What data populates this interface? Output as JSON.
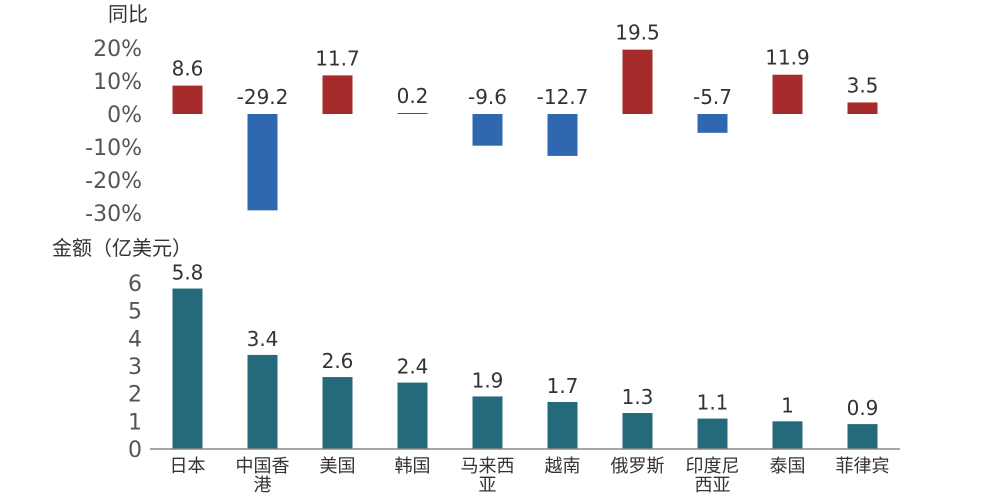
{
  "chart_data": [
    {
      "type": "bar",
      "ylabel": "同比",
      "ytick_labels": [
        "20%",
        "10%",
        "0%",
        "-10%",
        "-20%",
        "-30%"
      ],
      "ylim": [
        -30,
        20
      ],
      "value_labels": [
        "8.6",
        "-29.2",
        "11.7",
        "0.2",
        "-9.6",
        "-12.7",
        "19.5",
        "-5.7",
        "11.9",
        "3.5"
      ],
      "values": [
        8.6,
        -29.2,
        11.7,
        0.2,
        -9.6,
        -12.7,
        19.5,
        -5.7,
        11.9,
        3.5
      ],
      "colors": {
        "positive": "#a62b2b",
        "negative": "#2f67b1"
      },
      "grid": false
    },
    {
      "type": "bar",
      "ylabel": "金额（亿美元）",
      "categories": [
        [
          "日本"
        ],
        [
          "中国香",
          "港"
        ],
        [
          "美国"
        ],
        [
          "韩国"
        ],
        [
          "马来西",
          "亚"
        ],
        [
          "越南"
        ],
        [
          "俄罗斯"
        ],
        [
          "印度尼",
          "西亚"
        ],
        [
          "泰国"
        ],
        [
          "菲律宾"
        ]
      ],
      "ytick_labels": [
        "6",
        "5",
        "4",
        "3",
        "2",
        "1",
        "0"
      ],
      "ylim": [
        0,
        6
      ],
      "value_labels": [
        "5.8",
        "3.4",
        "2.6",
        "2.4",
        "1.9",
        "1.7",
        "1.3",
        "1.1",
        "1",
        "0.9"
      ],
      "values": [
        5.8,
        3.4,
        2.6,
        2.4,
        1.9,
        1.7,
        1.3,
        1.1,
        1,
        0.9
      ],
      "colors": {
        "bar": "#256a7a",
        "axis": "#888888"
      },
      "grid": false
    }
  ]
}
